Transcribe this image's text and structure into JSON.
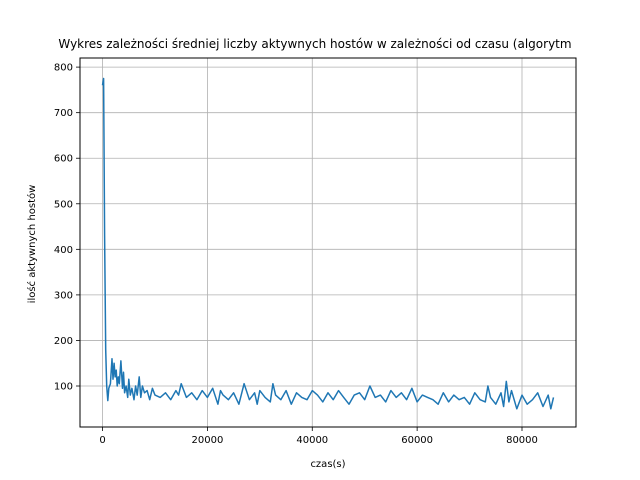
{
  "chart_data": {
    "type": "line",
    "title": "Wykres zależności średniej liczby aktywnych hostów w zależności od czasu (algorytm",
    "xlabel": "czas(s)",
    "ylabel": "ilość aktywnych hostów",
    "xlim": [
      -4300,
      90300
    ],
    "ylim": [
      10,
      820
    ],
    "xticks": [
      0,
      20000,
      40000,
      60000,
      80000
    ],
    "xtick_labels": [
      "0",
      "20000",
      "40000",
      "60000",
      "80000"
    ],
    "yticks": [
      100,
      200,
      300,
      400,
      500,
      600,
      700,
      800
    ],
    "ytick_labels": [
      "100",
      "200",
      "300",
      "400",
      "500",
      "600",
      "700",
      "800"
    ],
    "grid": true,
    "colors": {
      "line": "#1f77b4",
      "grid": "#b0b0b0",
      "axes": "#000000"
    },
    "series": [
      {
        "x": [
          0,
          200,
          400,
          600,
          800,
          1000,
          1200,
          1500,
          1800,
          2000,
          2200,
          2400,
          2600,
          2800,
          3000,
          3200,
          3500,
          3800,
          4000,
          4200,
          4500,
          4800,
          5000,
          5300,
          5600,
          6000,
          6300,
          6600,
          7000,
          7300,
          7600,
          8000,
          8500,
          9000,
          9500,
          10000,
          11000,
          12000,
          13000,
          14000,
          14500,
          15000,
          16000,
          17000,
          18000,
          19000,
          20000,
          21000,
          22000,
          22500,
          23000,
          24000,
          25000,
          26000,
          27000,
          28000,
          29000,
          29500,
          30000,
          31000,
          32000,
          32500,
          33000,
          34000,
          35000,
          36000,
          37000,
          38000,
          39000,
          40000,
          41000,
          42000,
          43000,
          44000,
          45000,
          46000,
          47000,
          48000,
          49000,
          50000,
          51000,
          52000,
          53000,
          54000,
          55000,
          56000,
          57000,
          58000,
          59000,
          60000,
          61000,
          62000,
          63000,
          64000,
          65000,
          66000,
          67000,
          68000,
          69000,
          70000,
          71000,
          72000,
          73000,
          73500,
          74000,
          75000,
          76000,
          76500,
          77000,
          77500,
          78000,
          79000,
          80000,
          81000,
          82000,
          83000,
          84000,
          85000,
          85500,
          86000
        ],
        "y": [
          760,
          775,
          430,
          180,
          100,
          68,
          95,
          105,
          160,
          115,
          150,
          120,
          135,
          100,
          120,
          105,
          155,
          95,
          130,
          85,
          100,
          75,
          115,
          80,
          95,
          70,
          100,
          80,
          120,
          75,
          100,
          85,
          90,
          70,
          95,
          80,
          75,
          85,
          70,
          90,
          80,
          105,
          75,
          85,
          70,
          90,
          75,
          95,
          60,
          90,
          80,
          70,
          85,
          60,
          105,
          70,
          85,
          60,
          90,
          75,
          65,
          105,
          80,
          70,
          90,
          60,
          85,
          75,
          70,
          90,
          80,
          65,
          85,
          70,
          90,
          75,
          60,
          80,
          85,
          70,
          100,
          75,
          80,
          65,
          90,
          75,
          85,
          70,
          95,
          65,
          80,
          75,
          70,
          60,
          85,
          65,
          80,
          70,
          75,
          60,
          85,
          70,
          65,
          100,
          75,
          60,
          85,
          55,
          110,
          65,
          90,
          50,
          80,
          60,
          70,
          85,
          55,
          80,
          50,
          75
        ]
      }
    ]
  }
}
